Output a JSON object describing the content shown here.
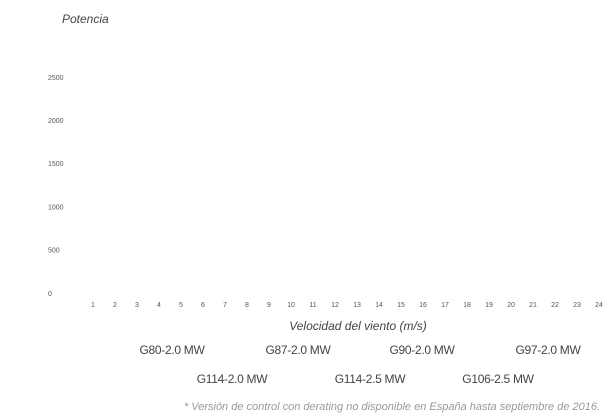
{
  "chart_data": {
    "type": "line",
    "title": "Potencia",
    "x_label": "Velocidad del viento (m/s)",
    "categories": [
      "1",
      "2",
      "3",
      "4",
      "5",
      "6",
      "7",
      "8",
      "9",
      "10",
      "11",
      "12",
      "13",
      "14",
      "15",
      "16",
      "17",
      "18",
      "19",
      "20",
      "21",
      "22",
      "23",
      "24"
    ],
    "series": [
      {
        "name": "G80-2.0 MW"
      },
      {
        "name": "G87-2.0 MW"
      },
      {
        "name": "G90-2.0 MW"
      },
      {
        "name": "G97-2.0 MW"
      },
      {
        "name": "G114-2.0 MW"
      },
      {
        "name": "G114-2.5 MW"
      },
      {
        "name": "G106-2.5 MW"
      }
    ],
    "ylim": [
      0,
      2500
    ],
    "yticks": [
      0,
      500,
      1000,
      1500,
      2000,
      2500
    ],
    "grid": false,
    "footnote": "* Versión de control con derating no disponible en España hasta septiembre de 2016."
  }
}
